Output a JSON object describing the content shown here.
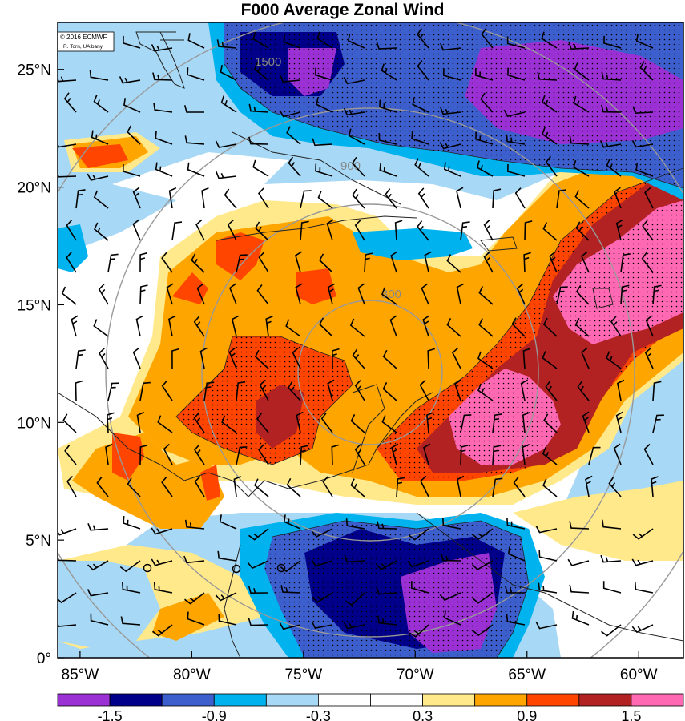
{
  "title": "F000 Average Zonal Wind",
  "credit": {
    "line1": "© 2016 ECMWF",
    "line2": "R. Torn, UAlbany"
  },
  "map": {
    "lon_range": [
      -86,
      -58
    ],
    "lat_range": [
      0,
      27
    ],
    "lon_ticks": [
      {
        "value": -85,
        "label": "85°W"
      },
      {
        "value": -80,
        "label": "80°W"
      },
      {
        "value": -75,
        "label": "75°W"
      },
      {
        "value": -70,
        "label": "70°W"
      },
      {
        "value": -65,
        "label": "65°W"
      },
      {
        "value": -60,
        "label": "60°W"
      }
    ],
    "lat_ticks": [
      {
        "value": 0,
        "label": "0°"
      },
      {
        "value": 5,
        "label": "5°N"
      },
      {
        "value": 10,
        "label": "10°N"
      },
      {
        "value": 15,
        "label": "15°N"
      },
      {
        "value": 20,
        "label": "20°N"
      },
      {
        "value": 25,
        "label": "25°N"
      }
    ],
    "range_rings": {
      "center": {
        "lon": -71,
        "lat": 13
      },
      "labels": [
        "300",
        "900",
        "1500"
      ]
    }
  },
  "colorbar": {
    "colors": [
      "#9b30d4",
      "#00008b",
      "#3c5fcd",
      "#00b2ee",
      "#a7d8f5",
      "#ffffff",
      "#ffffff",
      "#ffe98a",
      "#ffa500",
      "#ff4500",
      "#b22222",
      "#ff69b4"
    ],
    "labels": [
      "-1.5",
      "-0.9",
      "-0.3",
      "0.3",
      "0.9",
      "1.5"
    ]
  }
}
